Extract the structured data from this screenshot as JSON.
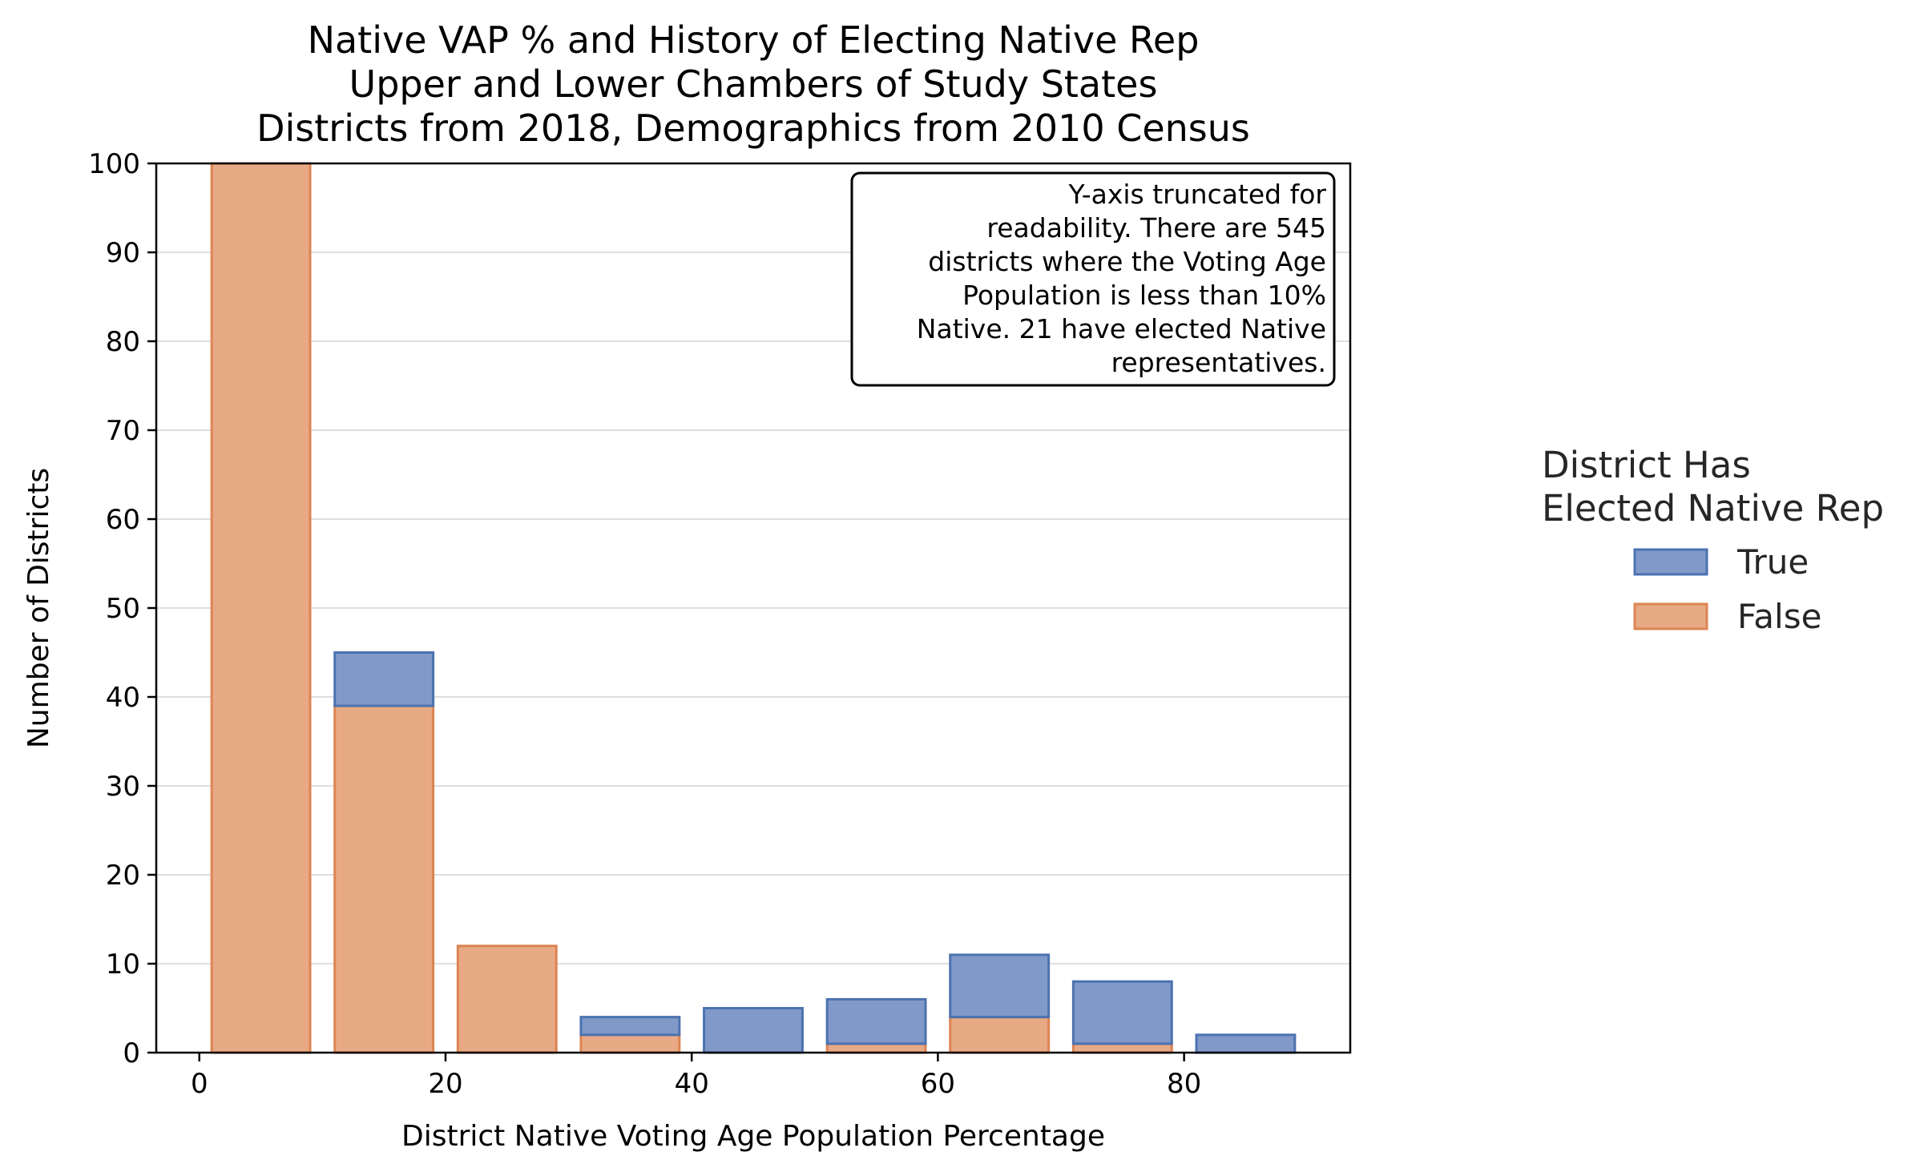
{
  "chart_data": {
    "type": "bar",
    "stacked": true,
    "title_lines": [
      "Native VAP % and History of Electing Native Rep",
      "Upper and Lower Chambers of Study States",
      "Districts from 2018, Demographics from 2010 Census"
    ],
    "xlabel": "District Native Voting Age Population Percentage",
    "ylabel": "Number of Districts",
    "xlim": [
      -3.5,
      93.5
    ],
    "ylim": [
      0,
      100
    ],
    "xticks": [
      0,
      20,
      40,
      60,
      80
    ],
    "yticks": [
      0,
      10,
      20,
      30,
      40,
      50,
      60,
      70,
      80,
      90,
      100
    ],
    "grid_y": true,
    "bins": [
      {
        "start": 1,
        "end": 9,
        "false": 100,
        "true": 0
      },
      {
        "start": 11,
        "end": 19,
        "false": 39,
        "true": 6
      },
      {
        "start": 21,
        "end": 29,
        "false": 12,
        "true": 0
      },
      {
        "start": 31,
        "end": 39,
        "false": 2,
        "true": 2
      },
      {
        "start": 41,
        "end": 49,
        "false": 0,
        "true": 5
      },
      {
        "start": 51,
        "end": 59,
        "false": 1,
        "true": 5
      },
      {
        "start": 61,
        "end": 69,
        "false": 4,
        "true": 7
      },
      {
        "start": 71,
        "end": 79,
        "false": 1,
        "true": 7
      },
      {
        "start": 81,
        "end": 89,
        "false": 0,
        "true": 2
      }
    ],
    "annotation_lines": [
      "Y-axis truncated for",
      "readability. There are 545",
      "districts where the Voting Age",
      "Population is less than 10%",
      "Native. 21 have elected Native",
      "representatives."
    ],
    "legend": {
      "position": "right",
      "title_lines": [
        "District Has",
        "Elected Native Rep"
      ],
      "entries": [
        {
          "label": "True",
          "fill": "#8099c8",
          "stroke": "#4c72b0"
        },
        {
          "label": "False",
          "fill": "#e8a985",
          "stroke": "#dd8452"
        }
      ]
    },
    "colors": {
      "true_fill": "#8099c8",
      "true_stroke": "#4c72b0",
      "false_fill": "#e8a985",
      "false_stroke": "#dd8452",
      "grid": "#d3d3d3"
    }
  }
}
